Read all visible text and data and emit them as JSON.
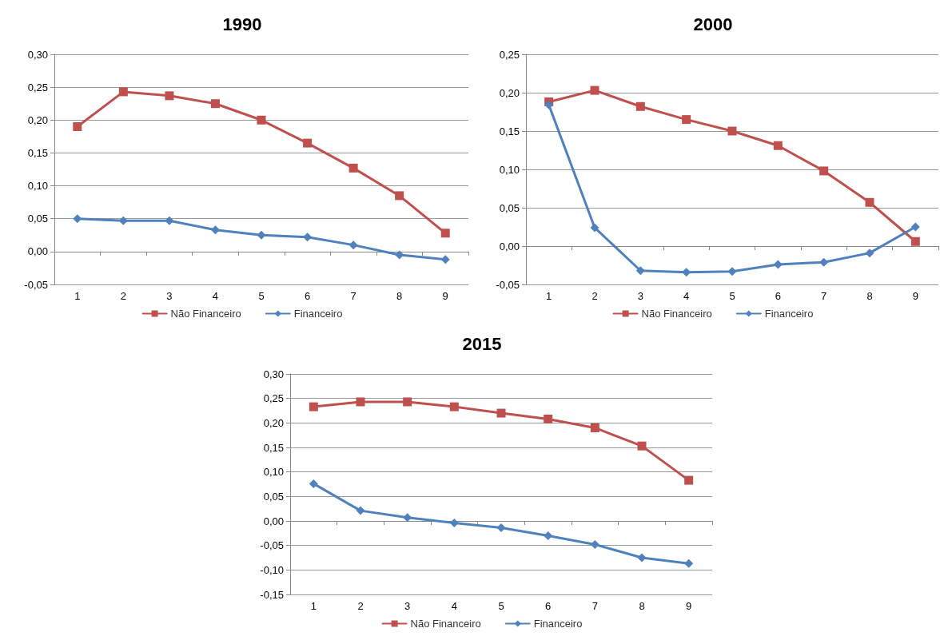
{
  "chart_data": [
    {
      "type": "line",
      "title": "1990",
      "categories": [
        "1",
        "2",
        "3",
        "4",
        "5",
        "6",
        "7",
        "8",
        "9"
      ],
      "ylim": [
        -0.05,
        0.3
      ],
      "yticks": [
        {
          "value": -0.05,
          "label": "-0,05"
        },
        {
          "value": 0,
          "label": "0,00"
        },
        {
          "value": 0.05,
          "label": "0,05"
        },
        {
          "value": 0.1,
          "label": "0,10"
        },
        {
          "value": 0.15,
          "label": "0,15"
        },
        {
          "value": 0.2,
          "label": "0,20"
        },
        {
          "value": 0.25,
          "label": "0,25"
        },
        {
          "value": 0.3,
          "label": "0,30"
        }
      ],
      "grid": "y",
      "legend": "bottom",
      "series": [
        {
          "name": "Não Financeiro",
          "color": "#c0504d",
          "marker": "square",
          "values": [
            0.19,
            0.243,
            0.237,
            0.225,
            0.2,
            0.165,
            0.127,
            0.085,
            0.028
          ]
        },
        {
          "name": "Financeiro",
          "color": "#4f81bd",
          "marker": "diamond",
          "values": [
            0.05,
            0.047,
            0.047,
            0.033,
            0.025,
            0.022,
            0.01,
            -0.005,
            -0.012
          ]
        }
      ]
    },
    {
      "type": "line",
      "title": "2000",
      "categories": [
        "1",
        "2",
        "3",
        "4",
        "5",
        "6",
        "7",
        "8",
        "9"
      ],
      "ylim": [
        -0.05,
        0.25
      ],
      "yticks": [
        {
          "value": -0.05,
          "label": "-0,05"
        },
        {
          "value": 0,
          "label": "0,00"
        },
        {
          "value": 0.05,
          "label": "0,05"
        },
        {
          "value": 0.1,
          "label": "0,10"
        },
        {
          "value": 0.15,
          "label": "0,15"
        },
        {
          "value": 0.2,
          "label": "0,20"
        },
        {
          "value": 0.25,
          "label": "0,25"
        }
      ],
      "grid": "y",
      "legend": "bottom",
      "series": [
        {
          "name": "Não Financeiro",
          "color": "#c0504d",
          "marker": "square",
          "values": [
            0.188,
            0.203,
            0.182,
            0.165,
            0.15,
            0.131,
            0.098,
            0.057,
            0.006
          ]
        },
        {
          "name": "Financeiro",
          "color": "#4f81bd",
          "marker": "diamond",
          "values": [
            0.184,
            0.024,
            -0.032,
            -0.034,
            -0.033,
            -0.024,
            -0.021,
            -0.009,
            0.025
          ]
        }
      ]
    },
    {
      "type": "line",
      "title": "2015",
      "categories": [
        "1",
        "2",
        "3",
        "4",
        "5",
        "6",
        "7",
        "8",
        "9"
      ],
      "ylim": [
        -0.15,
        0.3
      ],
      "yticks": [
        {
          "value": -0.15,
          "label": "-0,15"
        },
        {
          "value": -0.1,
          "label": "-0,10"
        },
        {
          "value": -0.05,
          "label": "-0,05"
        },
        {
          "value": 0,
          "label": "0,00"
        },
        {
          "value": 0.05,
          "label": "0,05"
        },
        {
          "value": 0.1,
          "label": "0,10"
        },
        {
          "value": 0.15,
          "label": "0,15"
        },
        {
          "value": 0.2,
          "label": "0,20"
        },
        {
          "value": 0.25,
          "label": "0,25"
        },
        {
          "value": 0.3,
          "label": "0,30"
        }
      ],
      "grid": "y",
      "legend": "bottom",
      "series": [
        {
          "name": "Não Financeiro",
          "color": "#c0504d",
          "marker": "square",
          "values": [
            0.233,
            0.243,
            0.243,
            0.233,
            0.22,
            0.208,
            0.19,
            0.153,
            0.083
          ]
        },
        {
          "name": "Financeiro",
          "color": "#4f81bd",
          "marker": "diamond",
          "values": [
            0.076,
            0.021,
            0.007,
            -0.004,
            -0.014,
            -0.03,
            -0.048,
            -0.075,
            -0.087
          ]
        }
      ]
    }
  ]
}
